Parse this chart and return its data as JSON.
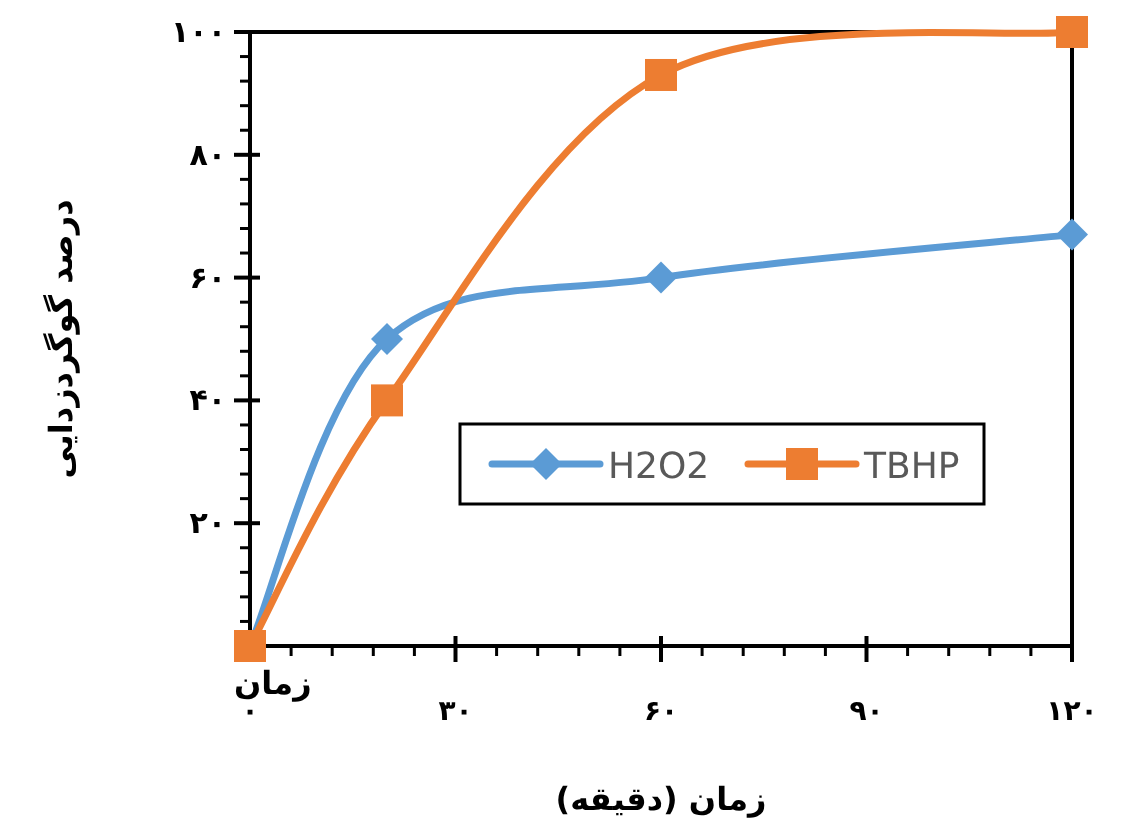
{
  "chart_data": {
    "type": "line",
    "xlabel": "زمان (دقیقه)",
    "ylabel": "درصد گوگردزدایی",
    "annotations": [
      {
        "text": "زمان",
        "x": 0,
        "y": 0
      }
    ],
    "series": [
      {
        "name": "H2O2",
        "color": "#5b9bd5",
        "marker": "diamond",
        "x": [
          0,
          20,
          60,
          120
        ],
        "values": [
          0,
          50,
          60,
          67
        ]
      },
      {
        "name": "TBHP",
        "color": "#ed7d31",
        "marker": "square",
        "x": [
          0,
          20,
          60,
          120
        ],
        "values": [
          0,
          40,
          93,
          100
        ]
      }
    ],
    "xlim": [
      0,
      120
    ],
    "ylim": [
      0,
      100
    ],
    "xticks": [
      {
        "value": 0,
        "label": "۰"
      },
      {
        "value": 30,
        "label": "۳۰"
      },
      {
        "value": 60,
        "label": "۶۰"
      },
      {
        "value": 90,
        "label": "۹۰"
      },
      {
        "value": 120,
        "label": "۱۲۰"
      }
    ],
    "yticks": [
      {
        "value": 0,
        "label": null
      },
      {
        "value": 20,
        "label": "۲۰"
      },
      {
        "value": 40,
        "label": "۴۰"
      },
      {
        "value": 60,
        "label": "۶۰"
      },
      {
        "value": 80,
        "label": "۸۰"
      },
      {
        "value": 100,
        "label": "۱۰۰"
      }
    ],
    "grid": false,
    "legend": "right",
    "line_style": "solid"
  }
}
